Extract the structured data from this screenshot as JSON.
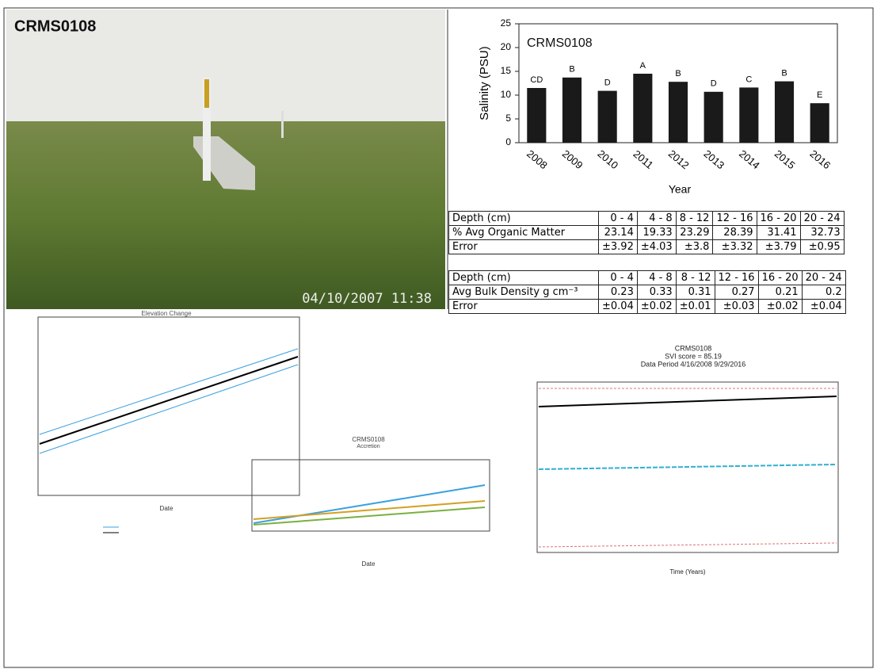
{
  "header": {
    "title": "CRMS0108"
  },
  "photo": {
    "timestamp": "04/10/2007 11:38"
  },
  "chart_data": {
    "type": "bar",
    "title": "CRMS0108",
    "ylabel": "Salinity (PSU)",
    "xlabel": "Year",
    "categories": [
      "2008",
      "2009",
      "2010",
      "2011",
      "2012",
      "2013",
      "2014",
      "2015",
      "2016"
    ],
    "values": [
      11.5,
      13.7,
      10.9,
      14.5,
      12.8,
      10.7,
      11.6,
      12.9,
      8.3
    ],
    "annotations": [
      "CD",
      "B",
      "D",
      "A",
      "B",
      "D",
      "C",
      "B",
      "E"
    ],
    "color": "#1a1a1a",
    "ylim": [
      0,
      25
    ],
    "yticks": [
      0,
      5,
      10,
      15,
      20,
      25
    ]
  },
  "tables": [
    {
      "header": [
        "Depth (cm)",
        "0 - 4",
        "4 - 8",
        "8 - 12",
        "12 - 16",
        "16 - 20",
        "20 - 24"
      ],
      "rows": [
        [
          "% Avg Organic Matter",
          "23.14",
          "19.33",
          "23.29",
          "28.39",
          "31.41",
          "32.73"
        ],
        [
          "Error",
          "±3.92",
          "±4.03",
          "±3.8",
          "±3.32",
          "±3.79",
          "±0.95"
        ]
      ]
    },
    {
      "header": [
        "Depth (cm)",
        "0 - 4",
        "4 - 8",
        "8 - 12",
        "12 - 16",
        "16 - 20",
        "20 - 24"
      ],
      "rows": [
        [
          "Avg Bulk Density g cm⁻³",
          "0.23",
          "0.33",
          "0.31",
          "0.27",
          "0.21",
          "0.2"
        ],
        [
          "Error",
          "±0.04",
          "±0.02",
          "±0.01",
          "±0.03",
          "±0.02",
          "±0.04"
        ]
      ]
    }
  ],
  "panels": {
    "elevation": {
      "title": "Elevation Change",
      "xlabel": "Date"
    },
    "accretion": {
      "title": "CRMS0108",
      "subtitle": "Accretion",
      "xlabel": "Date"
    },
    "svi": {
      "title": "CRMS0108",
      "score": "SVI score = 85.19",
      "period": "Data Period 4/16/2008 9/29/2016",
      "xlabel": "Time (Years)"
    }
  }
}
